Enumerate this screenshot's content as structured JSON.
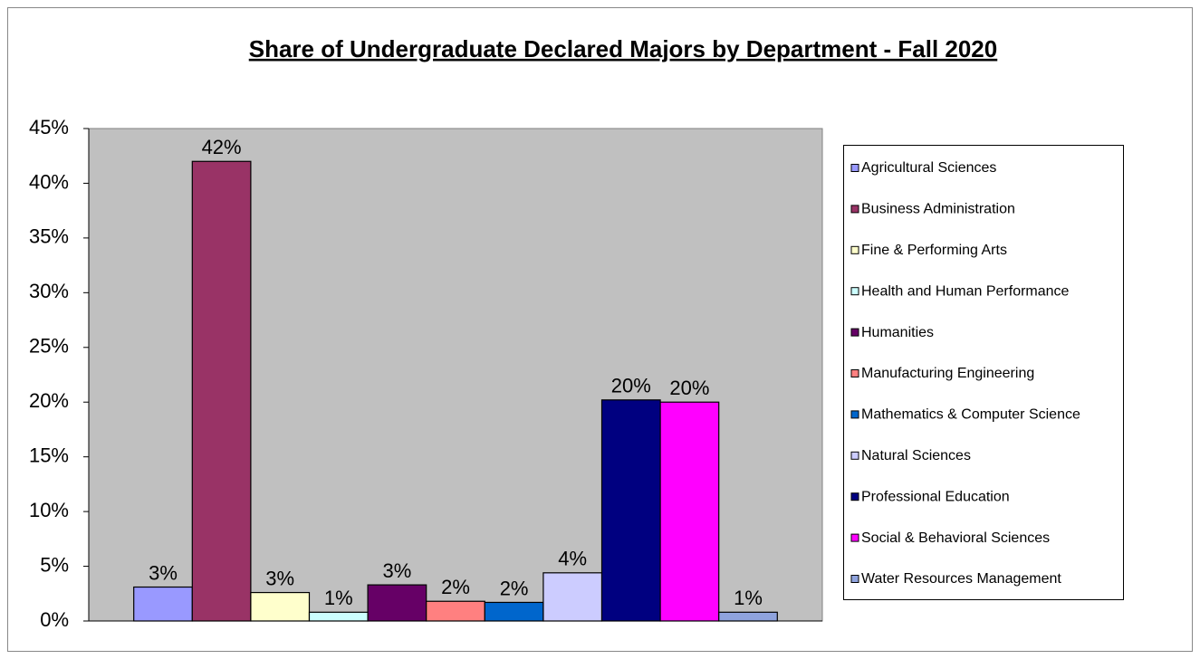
{
  "chart_data": {
    "type": "bar",
    "title": "Share of Undergraduate Declared Majors by Department - Fall 2020",
    "ylim": [
      0,
      45
    ],
    "yticks": [
      {
        "value": 0,
        "label": "0%"
      },
      {
        "value": 5,
        "label": "5%"
      },
      {
        "value": 10,
        "label": "10%"
      },
      {
        "value": 15,
        "label": "15%"
      },
      {
        "value": 20,
        "label": "20%"
      },
      {
        "value": 25,
        "label": "25%"
      },
      {
        "value": 30,
        "label": "30%"
      },
      {
        "value": 35,
        "label": "35%"
      },
      {
        "value": 40,
        "label": "40%"
      },
      {
        "value": 45,
        "label": "45%"
      }
    ],
    "grid": false,
    "legend": "right",
    "series": [
      {
        "name": "Agricultural Sciences",
        "color": "#9999ff",
        "values": [
          3.1
        ],
        "value_labels": [
          "3%"
        ]
      },
      {
        "name": "Business Administration",
        "color": "#993366",
        "values": [
          42.0
        ],
        "value_labels": [
          "42%"
        ]
      },
      {
        "name": "Fine & Performing Arts",
        "color": "#ffffcc",
        "values": [
          2.6
        ],
        "value_labels": [
          "3%"
        ]
      },
      {
        "name": "Health and Human Performance",
        "color": "#ccffff",
        "values": [
          0.8
        ],
        "value_labels": [
          "1%"
        ]
      },
      {
        "name": "Humanities",
        "color": "#660066",
        "values": [
          3.3
        ],
        "value_labels": [
          "3%"
        ]
      },
      {
        "name": "Manufacturing Engineering",
        "color": "#ff8080",
        "values": [
          1.8
        ],
        "value_labels": [
          "2%"
        ]
      },
      {
        "name": "Mathematics & Computer Science",
        "color": "#0066cc",
        "values": [
          1.7
        ],
        "value_labels": [
          "2%"
        ]
      },
      {
        "name": "Natural Sciences",
        "color": "#ccccff",
        "values": [
          4.4
        ],
        "value_labels": [
          "4%"
        ]
      },
      {
        "name": "Professional Education",
        "color": "#000080",
        "values": [
          20.2
        ],
        "value_labels": [
          "20%"
        ]
      },
      {
        "name": "Social & Behavioral Sciences",
        "color": "#ff00ff",
        "values": [
          20.0
        ],
        "value_labels": [
          "20%"
        ]
      },
      {
        "name": "Water Resources Management",
        "color": "#8fa3dd",
        "values": [
          0.8
        ],
        "value_labels": [
          "1%"
        ]
      }
    ]
  }
}
